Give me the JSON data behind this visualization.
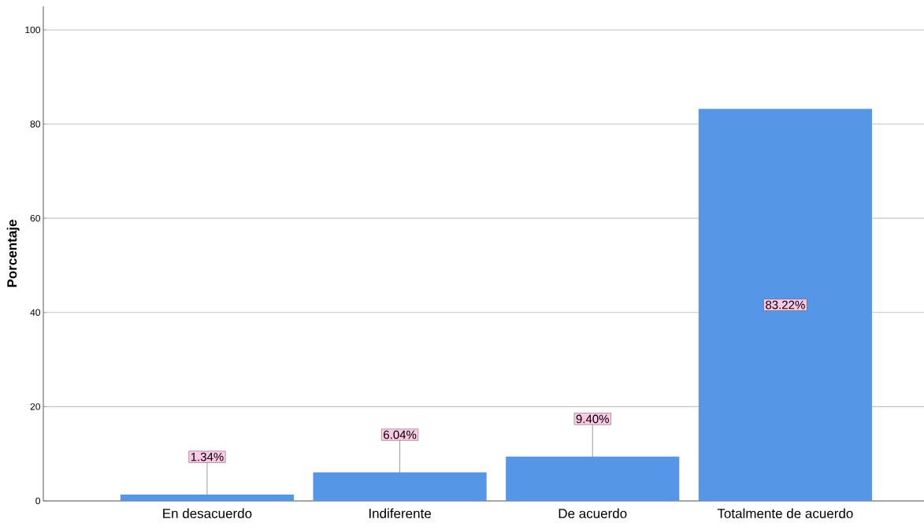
{
  "chart_data": {
    "type": "bar",
    "ylabel": "Porcentaje",
    "categories": [
      "En desacuerdo",
      "Indiferente",
      "De acuerdo",
      "Totalmente de acuerdo"
    ],
    "values": [
      1.34,
      6.04,
      9.4,
      83.22
    ],
    "value_labels": [
      "1.34%",
      "6.04%",
      "9.40%",
      "83.22%"
    ],
    "color": "#5596e6",
    "ylim": [
      0,
      105
    ],
    "yticks": [
      0,
      20,
      40,
      60,
      80,
      100
    ],
    "grid": "y"
  }
}
